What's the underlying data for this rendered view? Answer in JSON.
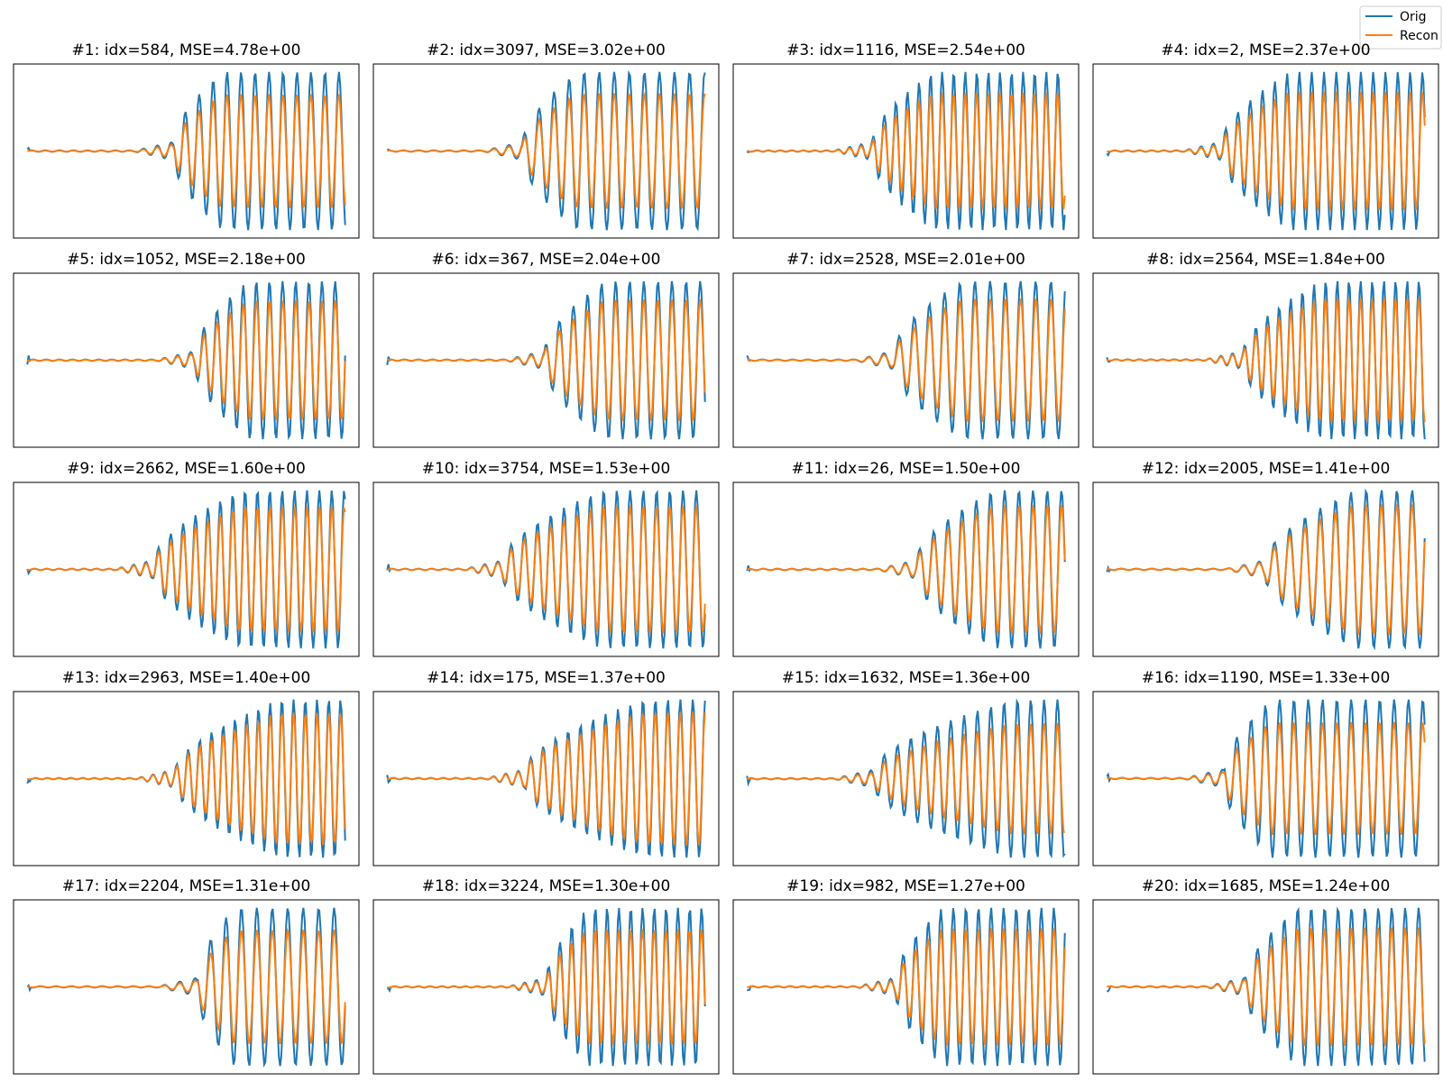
{
  "figure": {
    "legend": {
      "placement": "upper-right",
      "entries": [
        {
          "name": "Orig",
          "color": "#1f77b4"
        },
        {
          "name": "Recon",
          "color": "#ff7f0e"
        }
      ]
    }
  },
  "chart_data": {
    "type": "line",
    "layout": "5x4 grid of line plots, no axes ticks",
    "series_names": [
      "Orig",
      "Recon"
    ],
    "colors": {
      "Orig": "#1f77b4",
      "Recon": "#ff7f0e"
    },
    "grid": false,
    "panels": [
      {
        "title": "#1: idx=584, MSE=4.78e+00",
        "idx": 584,
        "mse": 4.78,
        "seed": 1
      },
      {
        "title": "#2: idx=3097, MSE=3.02e+00",
        "idx": 3097,
        "mse": 3.02,
        "seed": 2
      },
      {
        "title": "#3: idx=1116, MSE=2.54e+00",
        "idx": 1116,
        "mse": 2.54,
        "seed": 3
      },
      {
        "title": "#4: idx=2, MSE=2.37e+00",
        "idx": 2,
        "mse": 2.37,
        "seed": 4
      },
      {
        "title": "#5: idx=1052, MSE=2.18e+00",
        "idx": 1052,
        "mse": 2.18,
        "seed": 5
      },
      {
        "title": "#6: idx=367, MSE=2.04e+00",
        "idx": 367,
        "mse": 2.04,
        "seed": 6
      },
      {
        "title": "#7: idx=2528, MSE=2.01e+00",
        "idx": 2528,
        "mse": 2.01,
        "seed": 7
      },
      {
        "title": "#8: idx=2564, MSE=1.84e+00",
        "idx": 2564,
        "mse": 1.84,
        "seed": 8
      },
      {
        "title": "#9: idx=2662, MSE=1.60e+00",
        "idx": 2662,
        "mse": 1.6,
        "seed": 9
      },
      {
        "title": "#10: idx=3754, MSE=1.53e+00",
        "idx": 3754,
        "mse": 1.53,
        "seed": 10
      },
      {
        "title": "#11: idx=26, MSE=1.50e+00",
        "idx": 26,
        "mse": 1.5,
        "seed": 11
      },
      {
        "title": "#12: idx=2005, MSE=1.41e+00",
        "idx": 2005,
        "mse": 1.41,
        "seed": 12
      },
      {
        "title": "#13: idx=2963, MSE=1.40e+00",
        "idx": 2963,
        "mse": 1.4,
        "seed": 13
      },
      {
        "title": "#14: idx=175, MSE=1.37e+00",
        "idx": 175,
        "mse": 1.37,
        "seed": 14
      },
      {
        "title": "#15: idx=1632, MSE=1.36e+00",
        "idx": 1632,
        "mse": 1.36,
        "seed": 15
      },
      {
        "title": "#16: idx=1190, MSE=1.33e+00",
        "idx": 1190,
        "mse": 1.33,
        "seed": 16
      },
      {
        "title": "#17: idx=2204, MSE=1.31e+00",
        "idx": 2204,
        "mse": 1.31,
        "seed": 17
      },
      {
        "title": "#18: idx=3224, MSE=1.30e+00",
        "idx": 3224,
        "mse": 1.3,
        "seed": 18
      },
      {
        "title": "#19: idx=982, MSE=1.27e+00",
        "idx": 982,
        "mse": 1.27,
        "seed": 19
      },
      {
        "title": "#20: idx=1685, MSE=1.24e+00",
        "idx": 1685,
        "mse": 1.24,
        "seed": 20
      }
    ]
  }
}
